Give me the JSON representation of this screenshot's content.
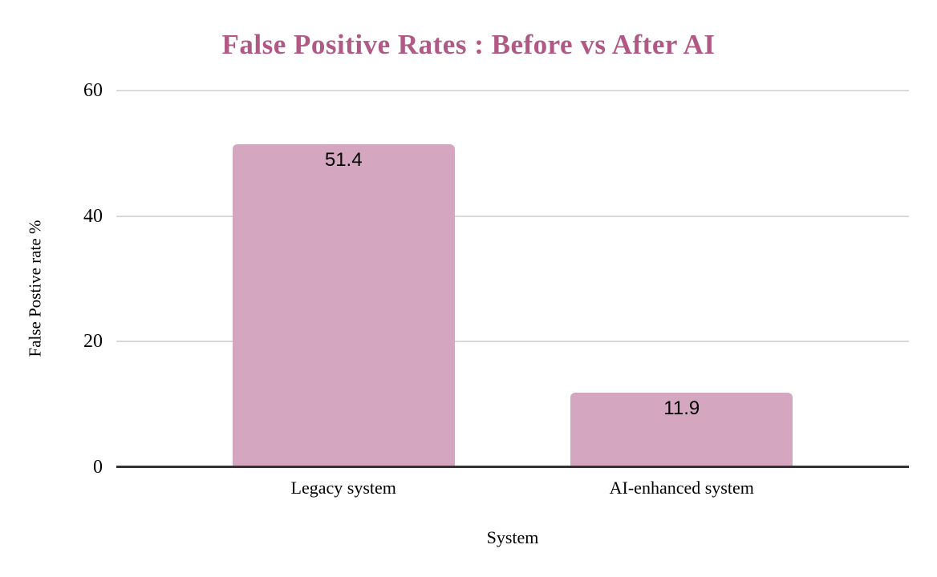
{
  "chart_data": {
    "type": "bar",
    "title": "False Positive Rates : Before vs After AI",
    "categories": [
      "Legacy system",
      "AI-enhanced system"
    ],
    "values": [
      51.4,
      11.9
    ],
    "value_labels": [
      "51.4",
      "11.9"
    ],
    "xlabel": "System",
    "ylabel": "False Postive rate %",
    "ylim": [
      0,
      60
    ],
    "yticks": [
      0,
      20,
      40,
      60
    ],
    "grid": true,
    "legend": false,
    "colors": {
      "bar_fill": "#d5a6c0",
      "title_text": "#b05985",
      "gridline": "#d9d9d9",
      "axis_line": "#333333",
      "label_text": "#000000",
      "background": "#ffffff"
    }
  }
}
